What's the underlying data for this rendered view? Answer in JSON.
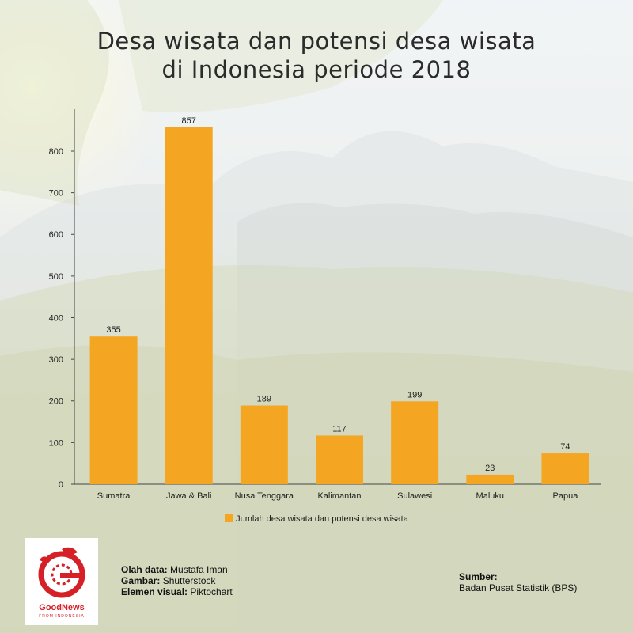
{
  "title_lines": [
    "Desa wisata dan potensi desa wisata",
    "di Indonesia periode 2018"
  ],
  "chart_data": {
    "type": "bar",
    "title": "Desa wisata dan potensi desa wisata di Indonesia periode 2018",
    "categories": [
      "Sumatra",
      "Jawa & Bali",
      "Nusa Tenggara",
      "Kalimantan",
      "Sulawesi",
      "Maluku",
      "Papua"
    ],
    "series": [
      {
        "name": "Jumlah desa wisata dan potensi desa wisata",
        "values": [
          355,
          857,
          189,
          117,
          199,
          23,
          74
        ]
      }
    ],
    "yticks": [
      0,
      100,
      200,
      300,
      400,
      500,
      600,
      700,
      800
    ],
    "ylim": [
      0,
      857
    ],
    "xlabel": "",
    "ylabel": "",
    "grid": false,
    "legend_position": "bottom",
    "bar_color": "#f4a623"
  },
  "legend_label": "Jumlah desa wisata dan potensi desa wisata",
  "credits": {
    "data_label": "Olah data:",
    "data_value": " Mustafa Iman",
    "image_label": "Gambar:",
    "image_value": " Shutterstock",
    "visual_label": "Elemen visual:",
    "visual_value": " Piktochart"
  },
  "source": {
    "label": "Sumber:",
    "value": "Badan Pusat Statistik (BPS)"
  },
  "logo": {
    "name": "GoodNews",
    "subtitle": "FROM INDONESIA",
    "color": "#d42026"
  }
}
